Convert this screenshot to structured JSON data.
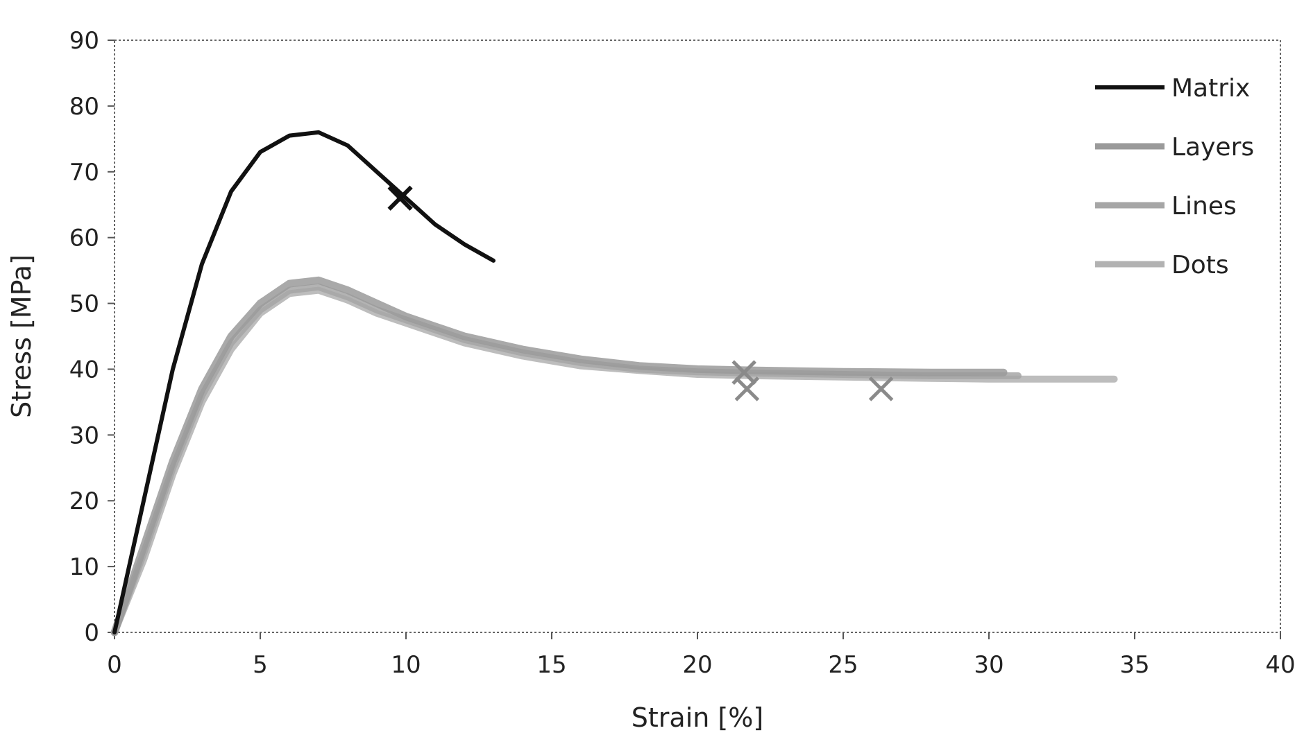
{
  "chart_data": {
    "type": "line",
    "title": "",
    "xlabel": "Strain [%]",
    "ylabel": "Stress [MPa]",
    "xlim": [
      0,
      40
    ],
    "ylim": [
      0,
      90
    ],
    "xticks": [
      "0",
      "5",
      "10",
      "15",
      "20",
      "25",
      "30",
      "35",
      "40"
    ],
    "yticks": [
      "0",
      "10",
      "20",
      "30",
      "40",
      "50",
      "60",
      "70",
      "80",
      "90"
    ],
    "grid": false,
    "legend_position": "top-right",
    "series": [
      {
        "name": "Matrix",
        "color": "#111111",
        "x": [
          0,
          1,
          2,
          3,
          4,
          5,
          6,
          7,
          8,
          9,
          10,
          11,
          12,
          13
        ],
        "y": [
          0,
          20,
          40,
          56,
          67,
          73,
          75.5,
          76,
          74,
          70,
          66,
          62,
          59,
          56.5
        ],
        "failure": {
          "x": 9.8,
          "y": 66
        }
      },
      {
        "name": "Layers",
        "color": "#9a9a9a",
        "x": [
          0,
          1,
          2,
          3,
          4,
          5,
          6,
          7,
          8,
          9,
          10,
          12,
          14,
          16,
          18,
          20,
          22,
          25,
          28,
          30,
          30.5
        ],
        "y": [
          0,
          13,
          26,
          37,
          45,
          50,
          53,
          53.5,
          52,
          50,
          48,
          45,
          43,
          41.5,
          40.5,
          40,
          39.8,
          39.6,
          39.5,
          39.5,
          39.5
        ],
        "failure": {
          "x": 21.6,
          "y": 39.5
        }
      },
      {
        "name": "Lines",
        "color": "#a6a6a6",
        "x": [
          0,
          1,
          2,
          3,
          4,
          5,
          6,
          7,
          8,
          9,
          10,
          12,
          14,
          16,
          18,
          20,
          22,
          25,
          28,
          30,
          31
        ],
        "y": [
          0,
          12,
          25,
          36,
          44,
          49,
          52,
          52.5,
          51,
          49,
          47.5,
          44.5,
          42.5,
          41,
          40,
          39.6,
          39.4,
          39.2,
          39,
          39,
          39
        ],
        "failure": {
          "x": 21.7,
          "y": 37
        }
      },
      {
        "name": "Dots",
        "color": "#b2b2b2",
        "x": [
          0,
          1,
          2,
          3,
          4,
          5,
          6,
          7,
          8,
          9,
          10,
          12,
          14,
          16,
          18,
          20,
          22,
          25,
          28,
          30,
          32,
          34.3
        ],
        "y": [
          0,
          11,
          24,
          35,
          43,
          48.5,
          51.5,
          52,
          50.5,
          48.5,
          47,
          44,
          42,
          40.5,
          39.8,
          39.2,
          39,
          38.8,
          38.6,
          38.5,
          38.5,
          38.5
        ],
        "failure": {
          "x": 26.3,
          "y": 37
        }
      }
    ]
  }
}
